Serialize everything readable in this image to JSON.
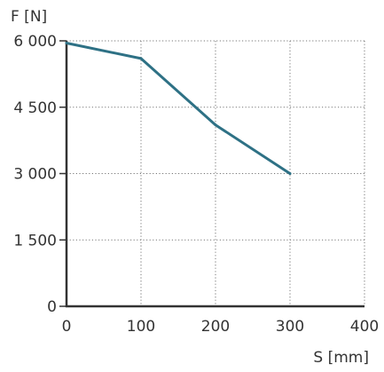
{
  "chart_data": {
    "type": "line",
    "title": "",
    "xlabel": "S [mm]",
    "ylabel": "F [N]",
    "xlim": [
      0,
      400
    ],
    "ylim": [
      0,
      6000
    ],
    "grid": true,
    "x_ticks": [
      {
        "value": 0,
        "label": "0"
      },
      {
        "value": 100,
        "label": "100"
      },
      {
        "value": 200,
        "label": "200"
      },
      {
        "value": 300,
        "label": "300"
      },
      {
        "value": 400,
        "label": "400"
      }
    ],
    "y_ticks": [
      {
        "value": 0,
        "label": "0"
      },
      {
        "value": 1500,
        "label": "1 500"
      },
      {
        "value": 3000,
        "label": "3 000"
      },
      {
        "value": 4500,
        "label": "4 500"
      },
      {
        "value": 6000,
        "label": "6 000"
      }
    ],
    "series": [
      {
        "color": "#2e7185",
        "x": [
          0,
          100,
          200,
          300
        ],
        "y": [
          5950,
          5600,
          4100,
          3000
        ]
      }
    ]
  },
  "colors": {
    "line": "#2e7185",
    "axis": "#333333",
    "grid": "#777777"
  }
}
